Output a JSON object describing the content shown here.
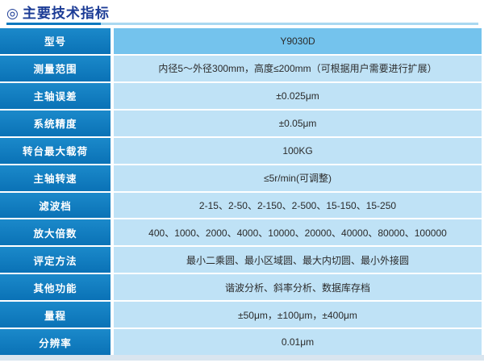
{
  "page": {
    "title": "主要技术指标",
    "title_icon": "◎"
  },
  "table": {
    "rows": [
      {
        "label": "型号",
        "value": "Y9030D",
        "highlight": true
      },
      {
        "label": "测量范围",
        "value": "内径5～外径300mm，高度≤200mm（可根据用户需要进行扩展）"
      },
      {
        "label": "主轴误差",
        "value": "±0.025μm"
      },
      {
        "label": "系统精度",
        "value": "±0.05μm"
      },
      {
        "label": "转台最大载荷",
        "value": "100KG"
      },
      {
        "label": "主轴转速",
        "value": "≤5r/min(可调整)"
      },
      {
        "label": "滤波档",
        "value": "2-15、2-50、2-150、2-500、15-150、15-250"
      },
      {
        "label": "放大倍数",
        "value": "400、1000、2000、4000、10000、20000、40000、80000、100000"
      },
      {
        "label": "评定方法",
        "value": "最小二乘圆、最小区域圆、最大内切圆、最小外接圆"
      },
      {
        "label": "其他功能",
        "value": "谐波分析、斜率分析、数据库存档"
      },
      {
        "label": "量程",
        "value": "±50μm，±100μm，±400μm"
      },
      {
        "label": "分辨率",
        "value": "0.01μm"
      }
    ]
  },
  "colors": {
    "title_navy": "#1c3c96",
    "divider_dark": "#0e78be",
    "divider_light": "#a9d8f1",
    "label_blue": "#0d7ec2",
    "value_bg": "#bfe2f6",
    "highlight_bg": "#74c3ed",
    "value_text": "#2b2b2b",
    "bottom_strip": "#d9e5ef"
  }
}
